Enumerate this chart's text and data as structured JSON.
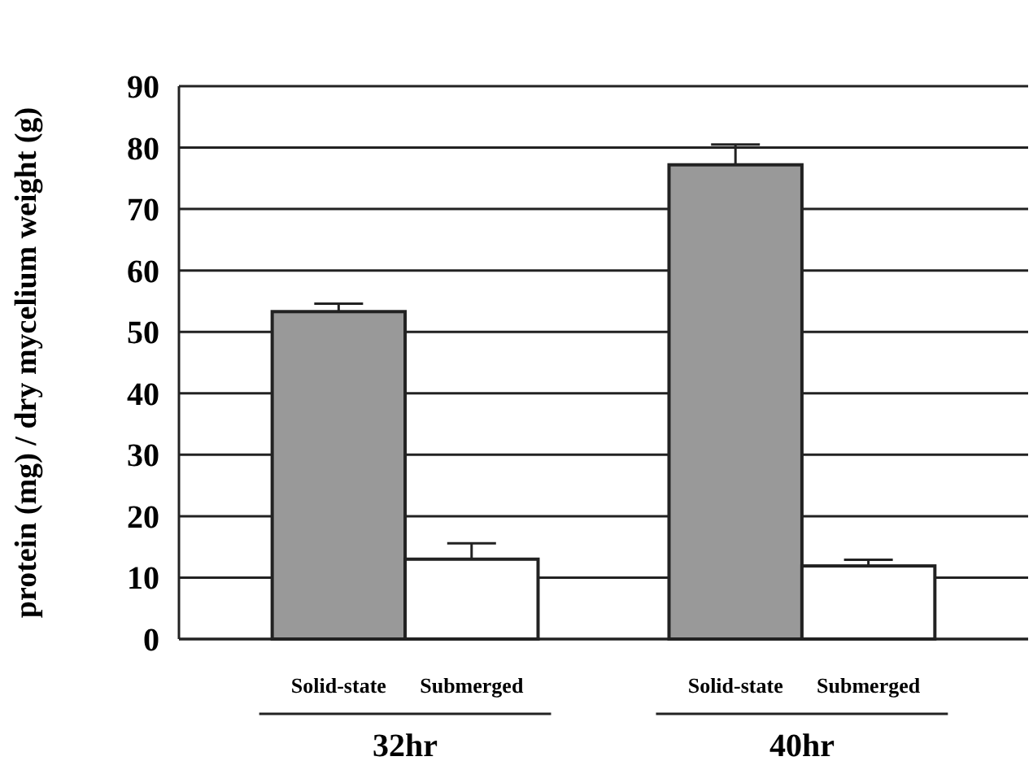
{
  "chart_data": {
    "type": "bar",
    "ylabel": "protein (mg) / dry mycelium weight (g)",
    "categories": [
      "32hr",
      "40hr"
    ],
    "series": [
      {
        "name": "Solid-state",
        "color": "#999999",
        "values": [
          53.3,
          77.2
        ],
        "errors": [
          1.3,
          3.3
        ]
      },
      {
        "name": "Submerged",
        "color": "#ffffff",
        "values": [
          13.0,
          11.9
        ],
        "errors": [
          2.6,
          1.0
        ]
      }
    ],
    "ylim": [
      0,
      90
    ],
    "yticks": [
      0,
      10,
      20,
      30,
      40,
      50,
      60,
      70,
      80,
      90
    ],
    "grid": "y"
  }
}
